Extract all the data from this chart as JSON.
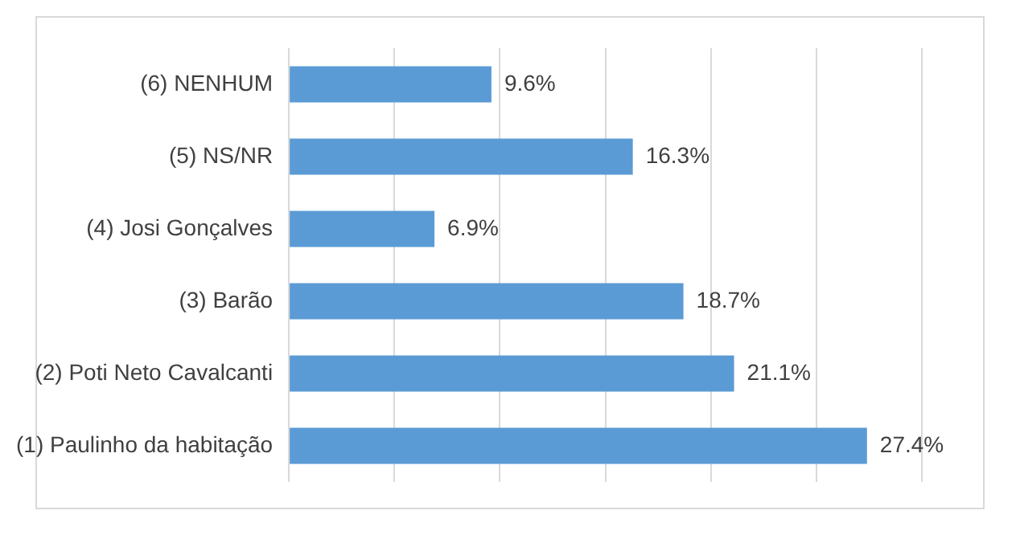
{
  "chart_data": {
    "type": "bar",
    "orientation": "horizontal",
    "categories": [
      "(6) NENHUM",
      "(5) NS/NR",
      "(4) Josi Gonçalves",
      "(3) Barão",
      "(2) Poti Neto Cavalcanti",
      "(1) Paulinho da habitação"
    ],
    "values": [
      9.6,
      16.3,
      6.9,
      18.7,
      21.1,
      27.4
    ],
    "value_labels": [
      "9.6%",
      "16.3%",
      "6.9%",
      "18.7%",
      "21.1%",
      "27.4%"
    ],
    "color": "#5b9bd5",
    "xlim": [
      0,
      30
    ],
    "xticks": [
      {
        "value": 0,
        "label": null
      },
      {
        "value": 5,
        "label": null
      },
      {
        "value": 10,
        "label": null
      },
      {
        "value": 15,
        "label": null
      },
      {
        "value": 20,
        "label": null
      },
      {
        "value": 25,
        "label": null
      },
      {
        "value": 30,
        "label": null
      }
    ],
    "grid": "x",
    "tick_labels": "y",
    "legend": false
  }
}
